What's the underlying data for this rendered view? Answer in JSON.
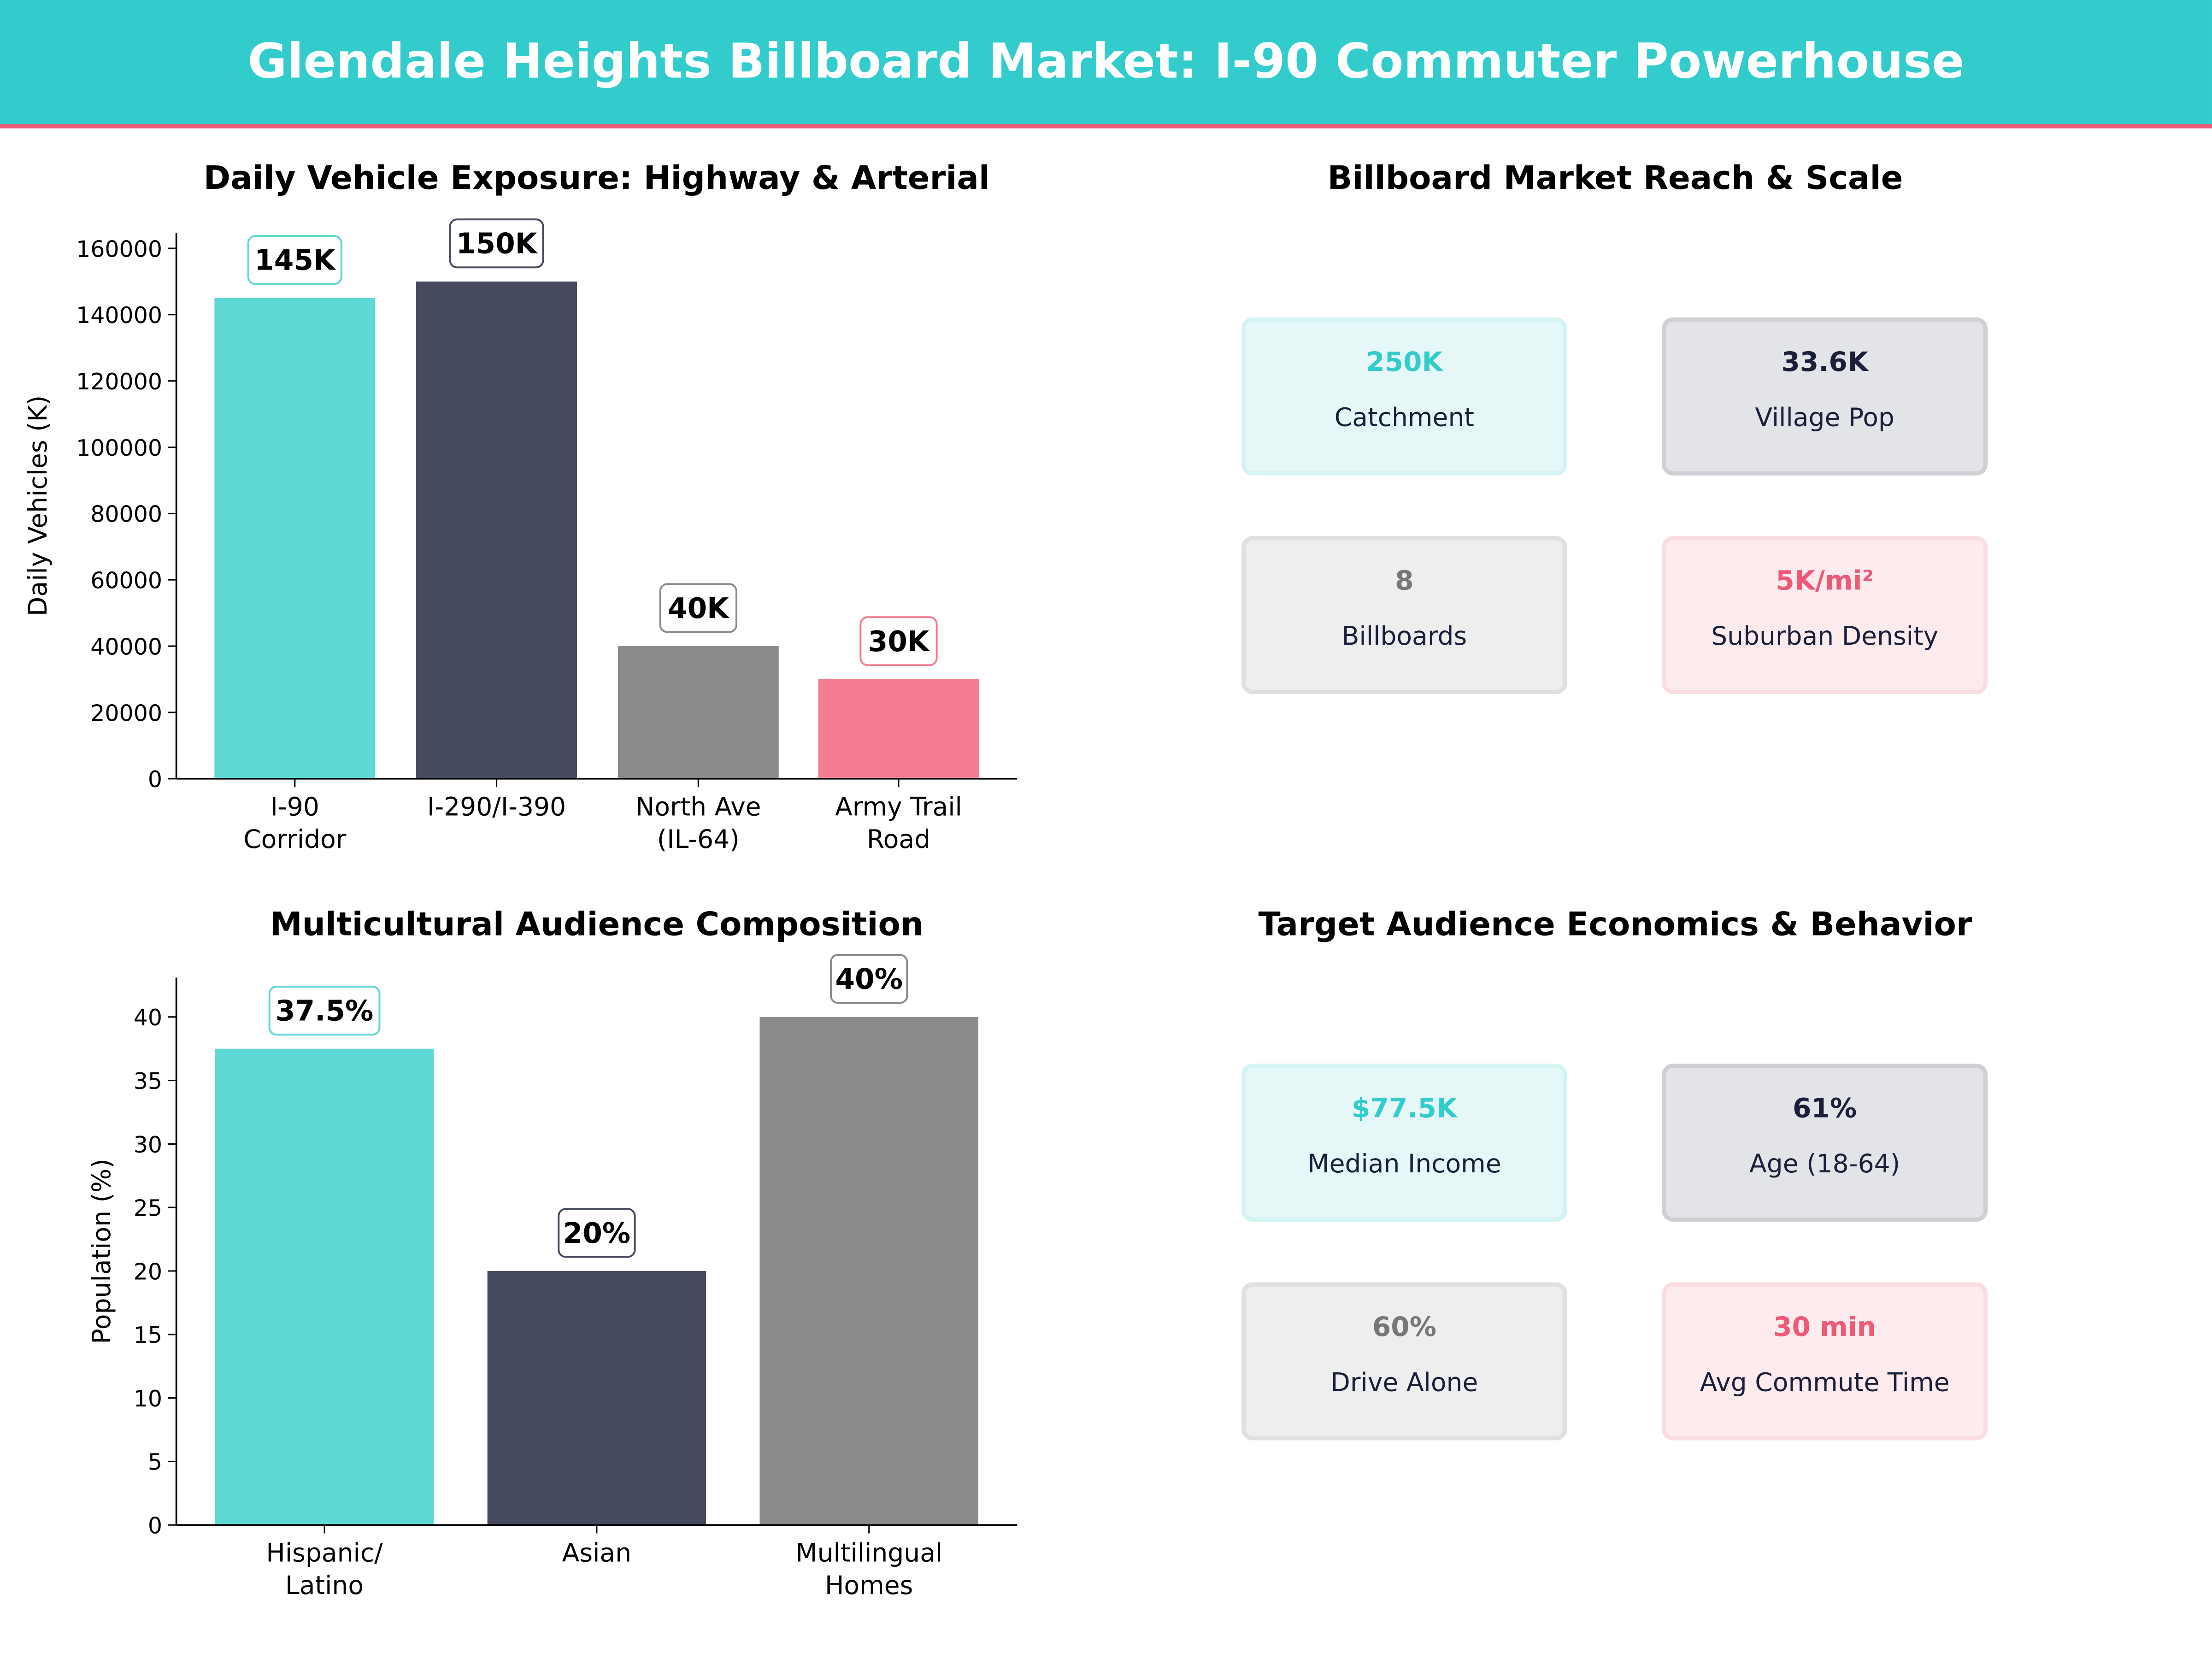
{
  "header": {
    "title": "Glendale Heights Billboard Market: I-90 Commuter Powerhouse"
  },
  "colors": {
    "teal": "#33CCCC",
    "navy": "#1A1F3A",
    "gray": "#777777",
    "pink": "#EE5A75"
  },
  "chart_data": [
    {
      "type": "bar",
      "title": "Daily Vehicle Exposure: Highway & Arterial",
      "xlabel": "",
      "ylabel": "Daily Vehicles (K)",
      "categories": [
        "I-90\nCorridor",
        "I-290/I-390",
        "North Ave\n(IL-64)",
        "Army Trail\nRoad"
      ],
      "values": [
        145000,
        150000,
        40000,
        30000
      ],
      "data_labels": [
        "145K",
        "150K",
        "40K",
        "30K"
      ],
      "colors": [
        "#5DD8D5",
        "#454A5E",
        "#8A8A8A",
        "#F47C91"
      ],
      "label_border_colors": [
        "#5DD8D5",
        "#454A5E",
        "#8A8A8A",
        "#F47C91"
      ],
      "ylim": [
        0,
        164700
      ],
      "yticks": [
        0,
        20000,
        40000,
        60000,
        80000,
        100000,
        120000,
        140000,
        160000
      ],
      "grid": false
    },
    {
      "type": "bar",
      "title": "Multicultural Audience Composition",
      "xlabel": "",
      "ylabel": "Population (%)",
      "categories": [
        "Hispanic/\nLatino",
        "Asian",
        "Multilingual\nHomes"
      ],
      "values": [
        37.5,
        20,
        40
      ],
      "data_labels": [
        "37.5%",
        "20%",
        "40%"
      ],
      "colors": [
        "#5DD8D5",
        "#454A5E",
        "#8A8A8A"
      ],
      "label_border_colors": [
        "#5DD8D5",
        "#454A5E",
        "#8A8A8A"
      ],
      "ylim": [
        0,
        43.1
      ],
      "yticks": [
        0,
        5,
        10,
        15,
        20,
        25,
        30,
        35,
        40
      ],
      "grid": false
    }
  ],
  "panels": [
    {
      "title": "Billboard Market Reach & Scale",
      "cards": [
        {
          "value": "250K",
          "label": "Catchment",
          "color": "#33CCCC",
          "bg": "#E6F7F7",
          "border": "#D4F3F3"
        },
        {
          "value": "33.6K",
          "label": "Village Pop",
          "color": "#1A1F3A",
          "bg": "#E3E4E8",
          "border": "#CFD0D6"
        },
        {
          "value": "8",
          "label": "Billboards",
          "color": "#777777",
          "bg": "#EEEEEE",
          "border": "#E0E0E0"
        },
        {
          "value": "5K/mi²",
          "label": "Suburban Density",
          "color": "#EE5A75",
          "bg": "#FDEBEE",
          "border": "#FBDCE2"
        }
      ]
    },
    {
      "title": "Target Audience Economics & Behavior",
      "cards": [
        {
          "value": "$77.5K",
          "label": "Median Income",
          "color": "#33CCCC",
          "bg": "#E6F7F7",
          "border": "#D4F3F3"
        },
        {
          "value": "61%",
          "label": "Age (18-64)",
          "color": "#1A1F3A",
          "bg": "#E3E4E8",
          "border": "#CFD0D6"
        },
        {
          "value": "60%",
          "label": "Drive Alone",
          "color": "#777777",
          "bg": "#EEEEEE",
          "border": "#E0E0E0"
        },
        {
          "value": "30 min",
          "label": "Avg Commute Time",
          "color": "#EE5A75",
          "bg": "#FDEBEE",
          "border": "#FBDCE2"
        }
      ]
    }
  ]
}
